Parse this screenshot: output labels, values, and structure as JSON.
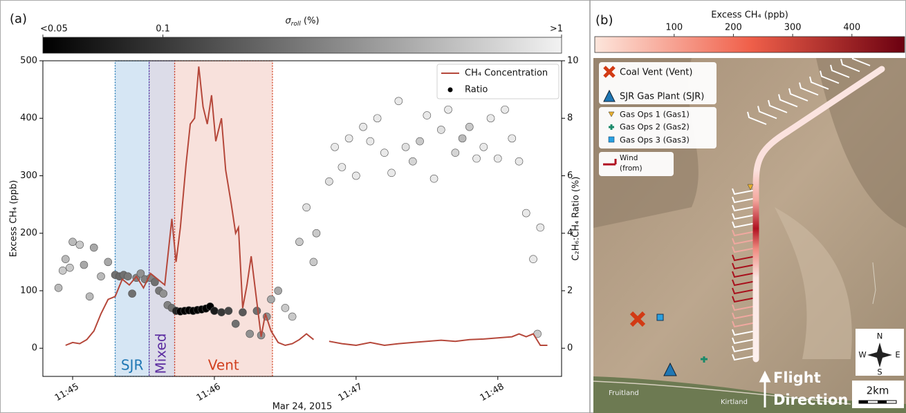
{
  "chart_data": {
    "type": "line",
    "panel_label": "(a)",
    "ylabel": "Excess CH₄ (ppb)",
    "y2label": "C₂H₆:CH₄ Ratio (%)",
    "xlabel": "Mar 24, 2015",
    "xlim": [
      44.79,
      48.45
    ],
    "xticks": [
      {
        "value": 45,
        "label": "11:45"
      },
      {
        "value": 46,
        "label": "11:46"
      },
      {
        "value": 47,
        "label": "11:47"
      },
      {
        "value": 48,
        "label": "11:48"
      }
    ],
    "ylim": [
      -49,
      500
    ],
    "yticks": [
      0,
      100,
      200,
      300,
      400,
      500
    ],
    "y2lim": [
      -0.98,
      10
    ],
    "y2ticks": [
      0,
      2,
      4,
      6,
      8,
      10
    ],
    "legend": "upper right",
    "colorbar": {
      "label": [
        "σ",
        "roll",
        " (%)"
      ],
      "scale": "log",
      "lim": [
        0.05,
        1
      ],
      "colors": [
        "#000000",
        "#f2f2f2"
      ],
      "ticks": [
        {
          "value": 0.05,
          "label": "<0.05"
        },
        {
          "value": 0.1,
          "label": "0.1"
        },
        {
          "value": 1,
          "label": ">1"
        }
      ]
    },
    "regions": [
      {
        "label": "SJR",
        "start": 45.3,
        "end": 45.54,
        "color": "#d6e6f4",
        "edge": "#1f77b4",
        "text_color": "#1f77b4",
        "vertical": false
      },
      {
        "label": "Mixed",
        "start": 45.54,
        "end": 45.72,
        "color": "#dcdce8",
        "edge": "#5b2ca0",
        "text_color": "#5b2ca0",
        "vertical": true
      },
      {
        "label": "Vent",
        "start": 45.72,
        "end": 46.41,
        "color": "#f8e1dc",
        "edge": "#d1401f",
        "text_color": "#d1401f",
        "vertical": false
      }
    ],
    "series": [
      {
        "name": "CH₄ Concentration",
        "type": "line",
        "color": "#b5473a",
        "x": [
          44.95,
          45.0,
          45.05,
          45.1,
          45.15,
          45.2,
          45.25,
          45.3,
          45.35,
          45.4,
          45.45,
          45.5,
          45.55,
          45.6,
          45.65,
          45.7,
          45.73,
          45.76,
          45.8,
          45.83,
          45.86,
          45.89,
          45.92,
          45.95,
          45.98,
          46.01,
          46.05,
          46.08,
          46.12,
          46.15,
          46.17,
          46.2,
          46.23,
          46.26,
          46.3,
          46.33,
          46.36,
          46.4,
          46.45,
          46.5,
          46.55,
          46.6,
          46.65,
          46.7,
          46.76,
          46.81,
          46.9,
          47.0,
          47.1,
          47.2,
          47.3,
          47.4,
          47.5,
          47.6,
          47.7,
          47.8,
          47.9,
          48.0,
          48.1,
          48.15,
          48.2,
          48.25,
          48.3,
          48.35
        ],
        "values": [
          5,
          10,
          8,
          15,
          30,
          60,
          85,
          90,
          120,
          110,
          125,
          105,
          130,
          120,
          110,
          225,
          150,
          210,
          320,
          390,
          400,
          490,
          420,
          390,
          440,
          360,
          400,
          310,
          250,
          200,
          210,
          70,
          110,
          160,
          80,
          20,
          60,
          30,
          10,
          5,
          8,
          15,
          25,
          15,
          null,
          12,
          8,
          5,
          10,
          5,
          8,
          10,
          12,
          14,
          12,
          15,
          16,
          18,
          20,
          25,
          20,
          25,
          5,
          5
        ]
      },
      {
        "name": "Ratio",
        "type": "scatter",
        "axis": "y2",
        "color": "#000000",
        "x": [
          44.9,
          44.93,
          44.95,
          44.98,
          45.0,
          45.05,
          45.08,
          45.12,
          45.15,
          45.2,
          45.25,
          45.3,
          45.33,
          45.36,
          45.39,
          45.42,
          45.45,
          45.48,
          45.51,
          45.55,
          45.58,
          45.61,
          45.64,
          45.67,
          45.7,
          45.73,
          45.76,
          45.79,
          45.82,
          45.85,
          45.88,
          45.91,
          45.94,
          45.97,
          46.0,
          46.05,
          46.1,
          46.15,
          46.2,
          46.25,
          46.3,
          46.33,
          46.37,
          46.4,
          46.45,
          46.5,
          46.55,
          46.6,
          46.65,
          46.7,
          46.72,
          46.81,
          46.85,
          46.9,
          46.95,
          47.0,
          47.05,
          47.1,
          47.15,
          47.2,
          47.25,
          47.3,
          47.35,
          47.4,
          47.45,
          47.5,
          47.55,
          47.6,
          47.65,
          47.7,
          47.75,
          47.8,
          47.85,
          47.9,
          47.95,
          48.0,
          48.05,
          48.1,
          48.15,
          48.2,
          48.25,
          48.28,
          48.3
        ],
        "values": [
          2.1,
          2.7,
          3.1,
          2.8,
          3.7,
          3.6,
          2.9,
          1.8,
          3.5,
          2.5,
          3.0,
          2.55,
          2.5,
          2.55,
          2.5,
          1.9,
          2.45,
          2.6,
          2.4,
          2.45,
          2.3,
          2.0,
          1.9,
          1.5,
          1.4,
          1.3,
          1.28,
          1.3,
          1.32,
          1.3,
          1.33,
          1.35,
          1.38,
          1.45,
          1.3,
          1.25,
          1.3,
          0.85,
          1.25,
          0.5,
          1.3,
          0.45,
          1.1,
          1.7,
          2.0,
          1.4,
          1.1,
          3.7,
          4.9,
          3.0,
          4.0,
          5.8,
          7.0,
          6.3,
          7.3,
          6.0,
          7.7,
          7.2,
          8.0,
          6.8,
          6.1,
          8.6,
          7.0,
          6.5,
          7.2,
          8.1,
          5.9,
          7.6,
          8.3,
          6.8,
          7.3,
          7.7,
          6.6,
          7.0,
          8.0,
          6.6,
          8.3,
          7.3,
          6.5,
          4.7,
          3.1,
          0.5,
          4.2
        ],
        "sigma_roll": [
          0.5,
          0.6,
          0.5,
          0.6,
          0.5,
          0.6,
          0.4,
          0.5,
          0.4,
          0.5,
          0.4,
          0.2,
          0.18,
          0.2,
          0.22,
          0.2,
          0.25,
          0.3,
          0.25,
          0.25,
          0.2,
          0.22,
          0.3,
          0.25,
          0.2,
          0.08,
          0.05,
          0.05,
          0.05,
          0.05,
          0.05,
          0.05,
          0.05,
          0.05,
          0.07,
          0.1,
          0.12,
          0.2,
          0.15,
          0.3,
          0.2,
          0.3,
          0.3,
          0.4,
          0.4,
          0.6,
          0.6,
          0.6,
          0.8,
          0.6,
          0.6,
          0.8,
          0.9,
          0.9,
          0.9,
          0.9,
          0.9,
          0.9,
          0.9,
          0.9,
          0.9,
          0.9,
          0.8,
          0.7,
          0.6,
          0.9,
          0.9,
          0.8,
          0.9,
          0.7,
          0.5,
          0.6,
          0.9,
          0.9,
          0.9,
          0.9,
          0.9,
          0.9,
          0.9,
          0.9,
          0.9,
          0.6,
          0.9
        ]
      }
    ]
  },
  "map": {
    "panel_label": "(b)",
    "colorbar": {
      "label": "Excess CH₄ (ppb)",
      "lim": [
        -34,
        489
      ],
      "colors": [
        "#fde6dc",
        "#f0604a",
        "#6b0010"
      ],
      "ticks": [
        100,
        200,
        300,
        400
      ]
    },
    "legend": [
      "Coal Vent (Vent)",
      "SJR Gas Plant (SJR)",
      "Gas Ops 1 (Gas1)",
      "Gas Ops 2 (Gas2)",
      "Gas Ops 3 (Gas3)"
    ],
    "wind_legend": [
      "Wind",
      "(from)"
    ],
    "compass": [
      "N",
      "S",
      "E",
      "W"
    ],
    "scale": "2km",
    "direction": [
      "Flight",
      "Direction"
    ],
    "places": [
      "Fruitland",
      "Kirtland"
    ]
  }
}
